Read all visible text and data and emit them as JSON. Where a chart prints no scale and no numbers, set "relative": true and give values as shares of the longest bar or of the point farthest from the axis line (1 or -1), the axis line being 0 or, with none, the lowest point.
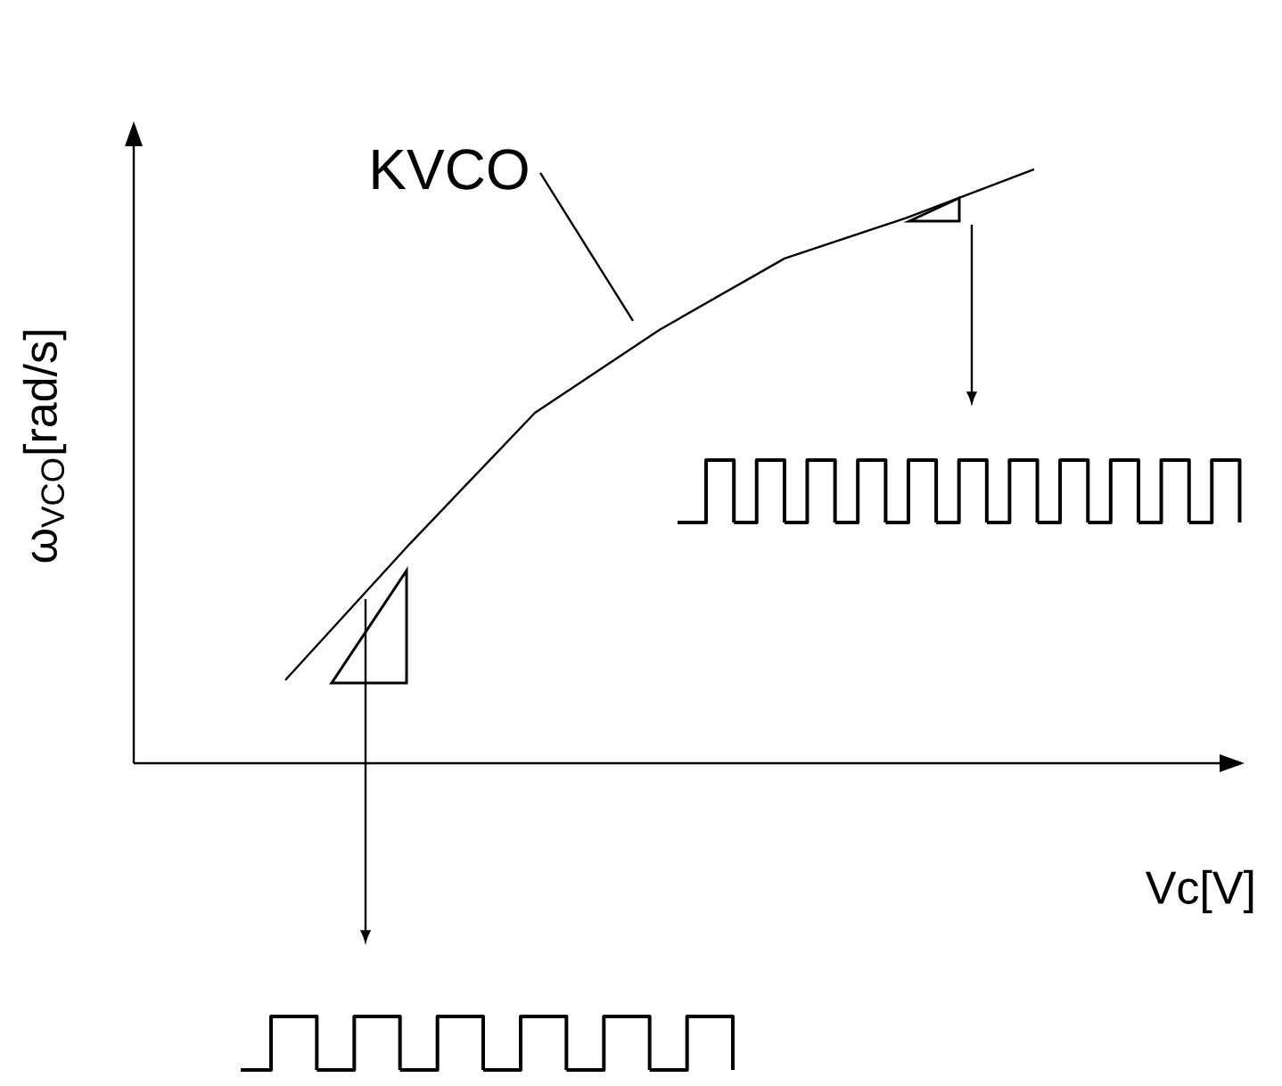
{
  "chart_data": {
    "type": "line",
    "relative": true,
    "xlabel": "Vc[V]",
    "ylabel": "ω$_{VCO}$[rad/s]",
    "annotations": [
      "KVCO"
    ],
    "categories": [
      null,
      null,
      null,
      null,
      null,
      null,
      null
    ],
    "series": [
      {
        "color": "#000000",
        "values": [
          0.14,
          0.37,
          0.59,
          0.73,
          0.85,
          0.92,
          1.0
        ]
      }
    ]
  }
}
